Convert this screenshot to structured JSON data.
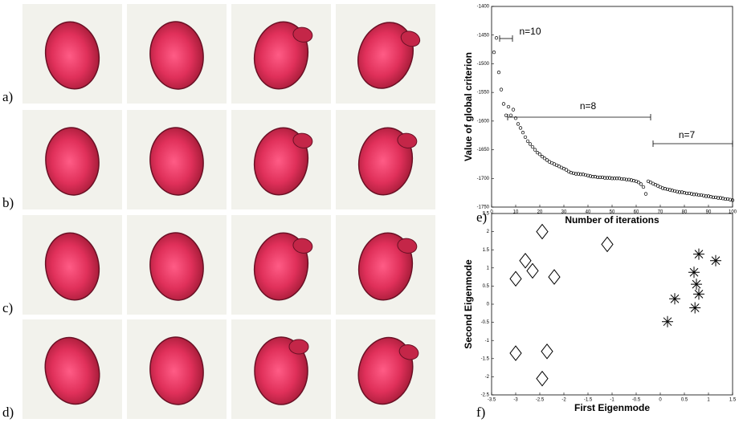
{
  "labels": [
    "a)",
    "b)",
    "c)",
    "d)",
    "e)",
    "f)"
  ],
  "chart_data": [
    {
      "type": "scatter",
      "xlabel": "Number of iterations",
      "ylabel": "Value of global criterion",
      "xlim": [
        0,
        100
      ],
      "ylim": [
        -1750,
        -1400
      ],
      "xticks": [
        0,
        10,
        20,
        30,
        40,
        50,
        60,
        70,
        80,
        90,
        100
      ],
      "yticks": [
        -1750,
        -1700,
        -1650,
        -1600,
        -1550,
        -1500,
        -1450,
        -1400
      ],
      "annotations": [
        "n=10",
        "n=8",
        "n=7"
      ],
      "series": [
        {
          "marker": "circle",
          "color": "#000000",
          "x": [
            1,
            2,
            3,
            4,
            5,
            6,
            7,
            8,
            9,
            10,
            11,
            12,
            13,
            14,
            15,
            16,
            17,
            18,
            19,
            20,
            21,
            22,
            23,
            24,
            25,
            26,
            27,
            28,
            29,
            30,
            31,
            32,
            33,
            34,
            35,
            36,
            37,
            38,
            39,
            40,
            41,
            42,
            43,
            44,
            45,
            46,
            47,
            48,
            49,
            50,
            51,
            52,
            53,
            54,
            55,
            56,
            57,
            58,
            59,
            60,
            61,
            62,
            63,
            64,
            65,
            66,
            67,
            68,
            69,
            70,
            71,
            72,
            73,
            74,
            75,
            76,
            77,
            78,
            79,
            80,
            81,
            82,
            83,
            84,
            85,
            86,
            87,
            88,
            89,
            90,
            91,
            92,
            93,
            94,
            95,
            96,
            97,
            98,
            99,
            100
          ],
          "values": [
            -1480,
            -1455,
            -1515,
            -1545,
            -1570,
            -1590,
            -1575,
            -1590,
            -1580,
            -1595,
            -1605,
            -1612,
            -1620,
            -1628,
            -1635,
            -1640,
            -1645,
            -1650,
            -1655,
            -1658,
            -1662,
            -1665,
            -1668,
            -1671,
            -1673,
            -1675,
            -1677,
            -1679,
            -1681,
            -1683,
            -1685,
            -1688,
            -1690,
            -1691,
            -1692,
            -1692,
            -1693,
            -1693,
            -1694,
            -1695,
            -1696,
            -1697,
            -1697,
            -1698,
            -1698,
            -1698,
            -1699,
            -1699,
            -1699,
            -1700,
            -1700,
            -1700,
            -1700,
            -1701,
            -1701,
            -1702,
            -1702,
            -1703,
            -1704,
            -1705,
            -1707,
            -1710,
            -1715,
            -1727,
            -1705,
            -1707,
            -1709,
            -1711,
            -1713,
            -1715,
            -1717,
            -1718,
            -1719,
            -1720,
            -1721,
            -1722,
            -1723,
            -1724,
            -1724,
            -1725,
            -1726,
            -1726,
            -1727,
            -1728,
            -1728,
            -1729,
            -1729,
            -1730,
            -1731,
            -1731,
            -1732,
            -1733,
            -1733,
            -1734,
            -1734,
            -1735,
            -1736,
            -1736,
            -1737,
            -1738
          ]
        }
      ]
    },
    {
      "type": "scatter",
      "xlabel": "First Eigenmode",
      "ylabel": "Second Eigenmode",
      "xlim": [
        -3.5,
        1.5
      ],
      "ylim": [
        -2.5,
        2.5
      ],
      "xticks": [
        -3.5,
        -3,
        -2.5,
        -2,
        -1.5,
        -1,
        -0.5,
        0,
        0.5,
        1,
        1.5
      ],
      "yticks": [
        -2.5,
        -2,
        -1.5,
        -1,
        -0.5,
        0,
        0.5,
        1,
        1.5,
        2,
        2.5
      ],
      "series": [
        {
          "marker": "diamond",
          "color": "#000000",
          "x": [
            -2.45,
            -2.8,
            -2.65,
            -3.0,
            -2.2,
            -1.1,
            -3.0,
            -2.35,
            -2.45
          ],
          "values": [
            2.0,
            1.2,
            0.92,
            0.7,
            0.75,
            1.65,
            -1.35,
            -1.3,
            -2.05
          ]
        },
        {
          "marker": "star",
          "color": "#000000",
          "x": [
            0.8,
            1.15,
            0.7,
            0.75,
            0.8,
            0.3,
            0.72,
            0.15
          ],
          "values": [
            1.38,
            1.2,
            0.88,
            0.55,
            0.28,
            0.15,
            -0.1,
            -0.48
          ]
        }
      ]
    }
  ]
}
